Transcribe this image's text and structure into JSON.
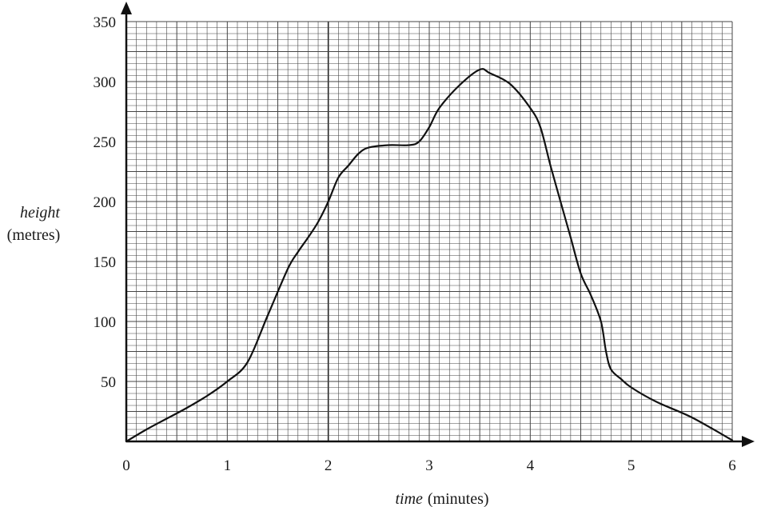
{
  "chart_data": {
    "type": "line",
    "title": "",
    "xlabel_italic": "time",
    "xlabel_unit": "(minutes)",
    "ylabel_italic": "height",
    "ylabel_unit": "(metres)",
    "xlim": [
      0,
      6
    ],
    "ylim": [
      0,
      350
    ],
    "x_ticks": [
      "0",
      "1",
      "2",
      "3",
      "4",
      "5",
      "6"
    ],
    "y_ticks": [
      "50",
      "100",
      "150",
      "200",
      "250",
      "300",
      "350"
    ],
    "grid": true,
    "series": [
      {
        "x": [
          0,
          0.2,
          0.4,
          0.6,
          0.8,
          1.0,
          1.2,
          1.4,
          1.6,
          1.7,
          1.8,
          1.9,
          2.0,
          2.1,
          2.2,
          2.3,
          2.4,
          2.6,
          2.8,
          2.9,
          3.0,
          3.1,
          3.3,
          3.5,
          3.6,
          3.8,
          4.0,
          4.1,
          4.2,
          4.3,
          4.4,
          4.5,
          4.6,
          4.7,
          4.75,
          4.8,
          4.9,
          5.0,
          5.25,
          5.6,
          6.0
        ],
        "y": [
          0,
          10,
          19,
          28,
          38,
          50,
          66,
          105,
          144,
          158,
          170,
          183,
          200,
          220,
          230,
          240,
          245,
          247,
          247,
          250,
          262,
          278,
          297,
          310,
          307,
          298,
          278,
          262,
          230,
          200,
          170,
          140,
          122,
          100,
          75,
          60,
          52,
          45,
          33,
          20,
          1
        ]
      }
    ]
  }
}
